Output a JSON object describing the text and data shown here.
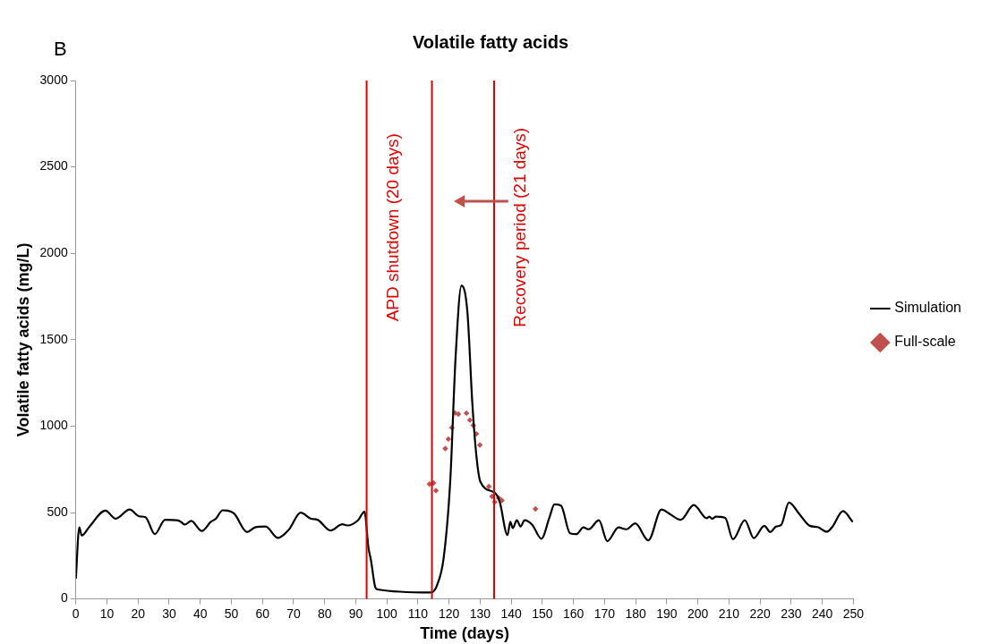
{
  "chart_data": {
    "type": "line",
    "title": "Volatile fatty acids",
    "xlabel": "Time (days)",
    "ylabel": "Volatile fatty acids (mg/L)",
    "annotations": [
      "B"
    ],
    "xlim": [
      0,
      250
    ],
    "xticks": [
      0,
      10,
      20,
      30,
      40,
      50,
      60,
      70,
      80,
      90,
      100,
      110,
      120,
      130,
      140,
      150,
      160,
      170,
      180,
      190,
      200,
      210,
      220,
      230,
      240,
      250
    ],
    "ylim": [
      0,
      3000
    ],
    "yticks": [
      0,
      500,
      1000,
      1500,
      2000,
      2500,
      3000
    ],
    "grid": false,
    "legend": "right",
    "series": [
      {
        "name": "Simulation",
        "type": "line",
        "color": "#000000",
        "marker": "none",
        "x": [
          0,
          1.1,
          1.9,
          4.4,
          9.5,
          12.8,
          17.3,
          20.4,
          22.4,
          25.4,
          28.7,
          32.5,
          33.8,
          35,
          37.1,
          40.5,
          43.4,
          45,
          47.2,
          48.8,
          50.9,
          55.1,
          57.6,
          61,
          65,
          68.5,
          72.3,
          75.6,
          77.7,
          81.9,
          85.7,
          87.3,
          90.7,
          92.8,
          94.1,
          94.9,
          96.2,
          97,
          114.2,
          116.2,
          118.3,
          120.4,
          122.1,
          124,
          125.9,
          127.5,
          128.8,
          130.1,
          134.7,
          136.3,
          138.8,
          139.7,
          140.5,
          141.8,
          143,
          144.3,
          146.8,
          149.7,
          152.3,
          153.9,
          156,
          158.9,
          161,
          163.2,
          164.9,
          168.2,
          170.9,
          174.5,
          177,
          179.9,
          184.1,
          188.3,
          190.8,
          194.5,
          198.7,
          202.9,
          203.7,
          204.6,
          205.8,
          208.8,
          211.3,
          215.1,
          218,
          221.4,
          223.3,
          225.2,
          226.8,
          229.3,
          232.7,
          236,
          238.5,
          241.5,
          243.2,
          246.7,
          249.8
        ],
        "values": [
          117,
          414,
          367,
          419,
          511,
          464,
          517,
          478,
          473,
          375,
          458,
          455,
          446,
          430,
          451,
          393,
          446,
          464,
          513,
          511,
          494,
          387,
          414,
          419,
          353,
          401,
          499,
          464,
          458,
          396,
          432,
          425,
          455,
          505,
          295,
          224,
          73,
          55,
          37,
          82,
          241,
          686,
          1396,
          1813,
          1662,
          1130,
          828,
          677,
          614,
          561,
          369,
          446,
          410,
          455,
          419,
          455,
          428,
          348,
          472,
          547,
          540,
          380,
          375,
          414,
          403,
          455,
          334,
          414,
          403,
          437,
          339,
          517,
          494,
          458,
          543,
          467,
          476,
          464,
          476,
          469,
          345,
          455,
          352,
          423,
          387,
          419,
          428,
          558,
          490,
          423,
          416,
          389,
          416,
          508,
          446
        ]
      },
      {
        "name": "Full-scale",
        "type": "scatter",
        "color": "#c0504d",
        "marker": "diamond",
        "x": [
          113.7,
          115,
          115.8,
          118.8,
          119.8,
          120.9,
          121.9,
          123,
          125.6,
          126.7,
          127.8,
          128.8,
          129.9,
          132.8,
          133.8,
          134.7,
          136,
          137,
          147.8
        ],
        "values": [
          664,
          671,
          627,
          870,
          925,
          991,
          1076,
          1069,
          1075,
          1035,
          1005,
          955,
          891,
          650,
          593,
          561,
          584,
          570,
          521
        ]
      }
    ],
    "ref_lines": [
      {
        "axis": "x",
        "value": 93.5,
        "label": "APD shutdown (20 days)",
        "color": "#e00000"
      },
      {
        "axis": "x",
        "value": 114.5,
        "color": "#e00000"
      },
      {
        "axis": "x",
        "value": 134.5,
        "label": "Recovery period (21 days)",
        "color": "#e00000"
      }
    ]
  }
}
